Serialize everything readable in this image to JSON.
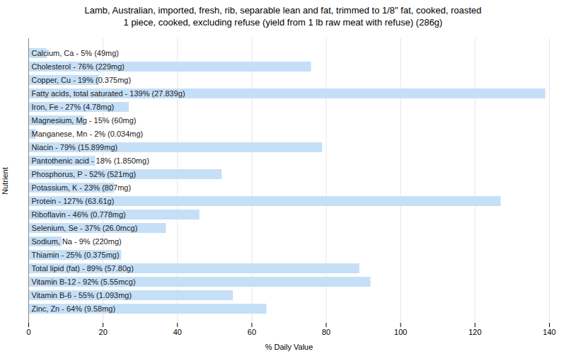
{
  "chart_data": {
    "type": "bar",
    "orientation": "horizontal",
    "title": "Lamb, Australian, imported, fresh, rib, separable lean and fat, trimmed to 1/8\" fat, cooked, roasted\n1 piece, cooked, excluding refuse (yield from 1 lb raw meat with refuse) (286g)",
    "xlabel": "% Daily Value",
    "ylabel": "Nutrient",
    "categories": [
      "Calcium, Ca - 5% (49mg)",
      "Cholesterol - 76% (229mg)",
      "Copper, Cu - 19% (0.375mg)",
      "Fatty acids, total saturated - 139% (27.839g)",
      "Iron, Fe - 27% (4.78mg)",
      "Magnesium, Mg - 15% (60mg)",
      "Manganese, Mn - 2% (0.034mg)",
      "Niacin - 79% (15.899mg)",
      "Pantothenic acid - 18% (1.850mg)",
      "Phosphorus, P - 52% (521mg)",
      "Potassium, K - 23% (807mg)",
      "Protein - 127% (63.61g)",
      "Riboflavin - 46% (0.778mg)",
      "Selenium, Se - 37% (26.0mcg)",
      "Sodium, Na - 9% (220mg)",
      "Thiamin - 25% (0.375mg)",
      "Total lipid (fat) - 89% (57.80g)",
      "Vitamin B-12 - 92% (5.55mcg)",
      "Vitamin B-6 - 55% (1.093mg)",
      "Zinc, Zn - 64% (9.58mg)"
    ],
    "values": [
      5,
      76,
      19,
      139,
      27,
      15,
      2,
      79,
      18,
      52,
      23,
      127,
      46,
      37,
      9,
      25,
      89,
      92,
      55,
      64
    ],
    "color": "#c5dff7",
    "xlim": [
      0,
      140
    ],
    "xticks": [
      0,
      20,
      40,
      60,
      80,
      100,
      120,
      140
    ],
    "grid": true
  }
}
